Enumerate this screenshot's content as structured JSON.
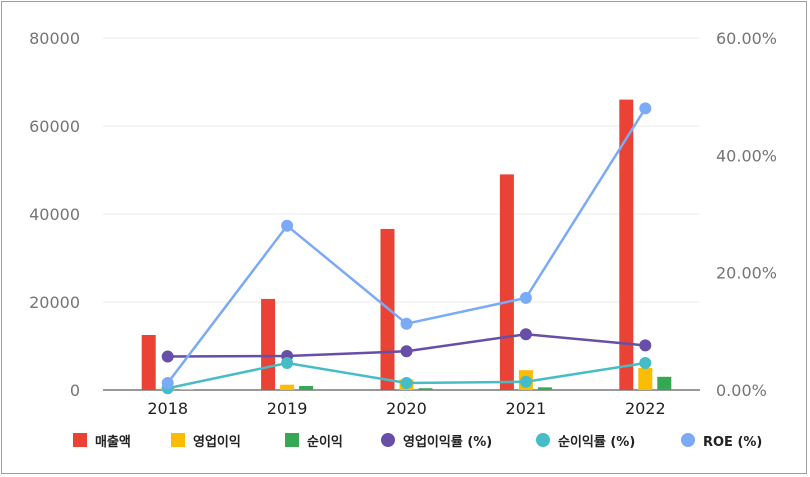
{
  "chart_data": {
    "type": "bar",
    "categories": [
      "2018",
      "2019",
      "2020",
      "2021",
      "2022"
    ],
    "y_left": {
      "ylim": [
        0,
        80000
      ],
      "ticks": [
        "0",
        "20000",
        "40000",
        "60000",
        "80000"
      ]
    },
    "y_right": {
      "ylim": [
        0,
        0.6
      ],
      "ticks": [
        "0.00%",
        "20.00%",
        "40.00%",
        "60.00%"
      ]
    },
    "series": [
      {
        "name": "매출액",
        "kind": "bar",
        "axis": "left",
        "color": "#ea4335",
        "values": [
          12500,
          20700,
          36600,
          49000,
          66000
        ]
      },
      {
        "name": "영업이익",
        "kind": "bar",
        "axis": "left",
        "color": "#fbbc04",
        "values": [
          400,
          1200,
          2400,
          4500,
          5000
        ]
      },
      {
        "name": "순이익",
        "kind": "bar",
        "axis": "left",
        "color": "#34a853",
        "values": [
          100,
          900,
          400,
          600,
          3000
        ]
      },
      {
        "name": "영업이익률 (%)",
        "kind": "line",
        "axis": "right",
        "color": "#674ea7",
        "values": [
          0.057,
          0.058,
          0.066,
          0.095,
          0.076
        ]
      },
      {
        "name": "순이익률 (%)",
        "kind": "line",
        "axis": "right",
        "color": "#46bdc6",
        "values": [
          0.003,
          0.046,
          0.012,
          0.014,
          0.046
        ]
      },
      {
        "name": "ROE (%)",
        "kind": "line",
        "axis": "right",
        "color": "#7baaf7",
        "values": [
          0.012,
          0.28,
          0.113,
          0.157,
          0.48
        ]
      }
    ],
    "legend": "bottom",
    "grid": true
  }
}
